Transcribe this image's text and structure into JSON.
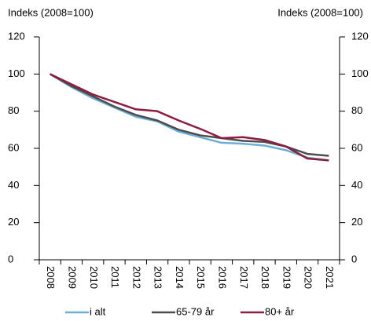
{
  "chart_data": {
    "type": "line",
    "y_label": "Indeks (2008=100)",
    "y2_label": "Indeks (2008=100)",
    "categories": [
      "2008",
      "2009",
      "2010",
      "2011",
      "2012",
      "2013",
      "2014",
      "2015",
      "2016",
      "2017",
      "2018",
      "2019",
      "2020",
      "2021"
    ],
    "series": [
      {
        "name": "i alt",
        "color": "#6baed6",
        "values": [
          100,
          93,
          87,
          82,
          77,
          74.5,
          69,
          66,
          63,
          62.5,
          61.5,
          59,
          55,
          53.5
        ]
      },
      {
        "name": "65-79 år",
        "color": "#4d4d4d",
        "values": [
          100,
          93.5,
          88,
          82.5,
          78,
          75,
          70,
          67,
          65.5,
          64,
          63.5,
          61,
          57,
          56
        ]
      },
      {
        "name": "80+ år",
        "color": "#8c1d40",
        "values": [
          100,
          94.5,
          89,
          85,
          81,
          80,
          75,
          70.5,
          65.5,
          66,
          64.5,
          61,
          54.5,
          53.5
        ]
      }
    ],
    "ylim": [
      0,
      120
    ],
    "yticks": [
      0,
      20,
      40,
      60,
      80,
      100,
      120
    ],
    "y2lim": [
      0,
      120
    ],
    "y2ticks": [
      0,
      20,
      40,
      60,
      80,
      100,
      120
    ],
    "grid": false,
    "legend": "bottom"
  }
}
